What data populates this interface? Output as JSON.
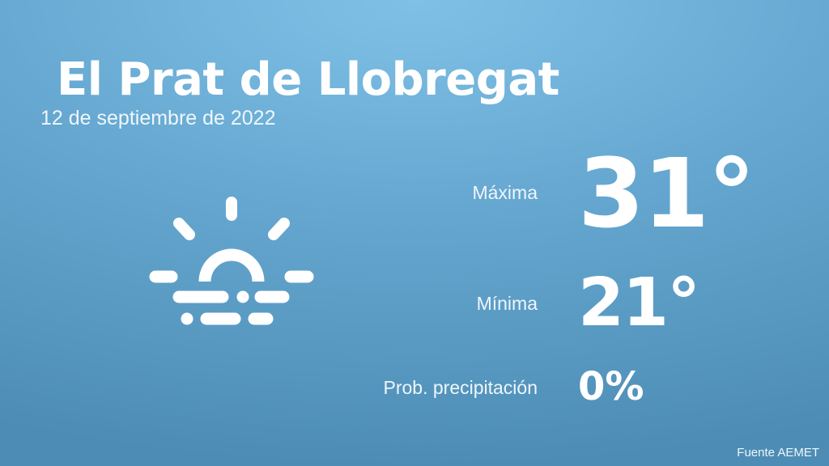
{
  "location": "El Prat de Llobregat",
  "date": "12 de septiembre de 2022",
  "weather_icon": "sunrise-fog-icon",
  "max": {
    "label": "Máxima",
    "value": "31°"
  },
  "min": {
    "label": "Mínima",
    "value": "21°"
  },
  "precipitation": {
    "label": "Prob. precipitación",
    "value": "0%"
  },
  "source": "Fuente AEMET",
  "colors": {
    "background_top": "#7fc1e6",
    "background_bottom": "#4d8db5",
    "text": "#ffffff"
  }
}
